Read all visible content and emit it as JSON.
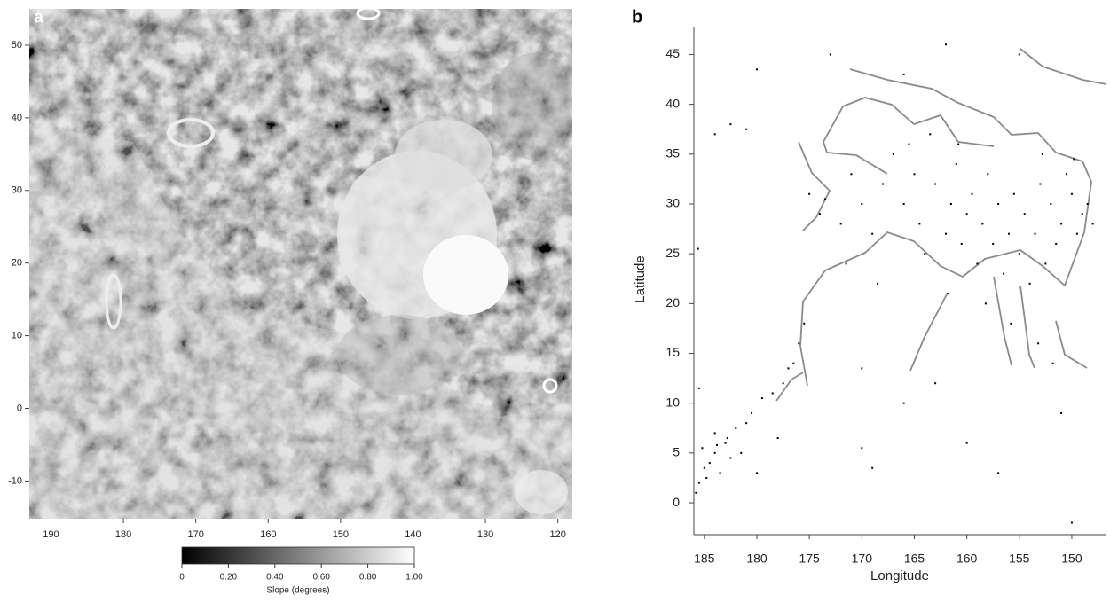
{
  "chart_data": [
    {
      "type": "image",
      "panel": "a",
      "xlim": [
        193,
        118
      ],
      "ylim": [
        -15.2,
        55
      ],
      "xticks": [
        190,
        180,
        170,
        160,
        150,
        140,
        130,
        120
      ],
      "yticks": [
        -10,
        0,
        10,
        20,
        30,
        40,
        50
      ],
      "colorbar": {
        "label": "Slope (degrees)",
        "lim": [
          0,
          1
        ],
        "colors": [
          "#000000",
          "#ffffff"
        ],
        "ticks": [
          0,
          {
            "value": 0.2,
            "label": "0.20"
          },
          {
            "value": 0.4,
            "label": "0.40"
          },
          {
            "value": 0.6,
            "label": "0.60"
          },
          {
            "value": 0.8,
            "label": "0.80"
          },
          {
            "value": 1,
            "label": "1.00"
          }
        ]
      }
    },
    {
      "type": "scatter",
      "panel": "b",
      "xlabel": "Longitude",
      "ylabel": "Latitude",
      "xlim": [
        186,
        146.7
      ],
      "ylim": [
        -3.2,
        47.8
      ],
      "xticks": [
        185,
        180,
        175,
        170,
        165,
        160,
        155,
        150
      ],
      "yticks": [
        0,
        5,
        10,
        15,
        20,
        25,
        30,
        35,
        40,
        45
      ],
      "color": "#000000",
      "x": [
        185.5,
        185,
        184.5,
        184,
        185.2,
        183.5,
        183,
        182.5,
        184,
        182,
        181,
        180.5,
        179.5,
        178.5,
        177.5,
        177,
        176.5,
        176,
        185.8,
        184.8,
        183.8,
        182.8,
        181.5,
        180,
        178,
        185.5,
        185.6,
        184,
        182.5,
        181,
        175,
        174,
        173.5,
        172,
        171,
        170,
        169,
        168,
        167,
        166,
        165,
        164.5,
        164,
        163,
        162,
        161.5,
        161,
        160.5,
        160,
        159.5,
        159,
        158.5,
        158,
        157.5,
        157,
        156.5,
        156,
        155.5,
        155,
        154.5,
        154,
        153.5,
        153,
        152.5,
        152,
        151.5,
        151,
        150.5,
        150,
        149.5,
        149,
        148.5,
        148,
        165.5,
        163.5,
        160.8,
        152.8,
        149.8,
        171.5,
        168.5,
        161.8,
        158.2,
        155.8,
        153.2,
        151.8,
        175.5,
        170,
        169,
        166,
        160,
        157,
        151,
        150,
        166,
        162,
        155,
        173,
        180,
        170,
        163
      ],
      "y": [
        2,
        3.5,
        4,
        5,
        5.5,
        3,
        6,
        4.5,
        7,
        7.5,
        8,
        9,
        10.5,
        11,
        12,
        13.5,
        14,
        16,
        1,
        2.5,
        5.8,
        6.5,
        5,
        3,
        6.5,
        11.5,
        25.5,
        37,
        38,
        37.5,
        31,
        29,
        30.5,
        28,
        33,
        30,
        27,
        32,
        35,
        30,
        33,
        28,
        25,
        32,
        27,
        30,
        34,
        26,
        29,
        31,
        24,
        28,
        33,
        26,
        30,
        23,
        27,
        31,
        25,
        29,
        22,
        27,
        32,
        24,
        30,
        26,
        28,
        33,
        31,
        27,
        29,
        30,
        28,
        36,
        37,
        36,
        35,
        34.5,
        24,
        22,
        21,
        20,
        18,
        16,
        14,
        18,
        5.5,
        3.5,
        10,
        6,
        3,
        9,
        -2,
        43,
        46,
        45,
        45,
        43.5,
        13.5,
        12
      ]
    }
  ]
}
